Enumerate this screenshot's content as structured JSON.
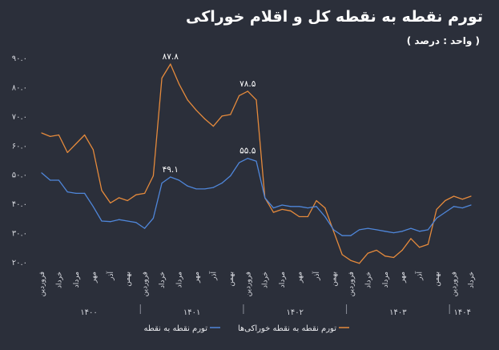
{
  "chart_data": {
    "type": "line",
    "title": "تورم نقطه به نقطه کل و اقلام خوراکی",
    "subtitle": "( واحد : درصد )",
    "ylim": [
      20,
      90
    ],
    "yticks": [
      "۲۰.۰",
      "۳۰.۰",
      "۴۰.۰",
      "۵۰.۰",
      "۶۰.۰",
      "۷۰.۰",
      "۸۰.۰",
      "۹۰.۰"
    ],
    "ytick_values": [
      20,
      30,
      40,
      50,
      60,
      70,
      80,
      90
    ],
    "x": [
      "فروردین",
      "",
      "خرداد",
      "",
      "مرداد",
      "",
      "مهر",
      "",
      "آذر",
      "",
      "بهمن",
      "",
      "فروردین",
      "",
      "خرداد",
      "",
      "مرداد",
      "",
      "مهر",
      "",
      "آذر",
      "",
      "بهمن",
      "",
      "فروردین",
      "",
      "خرداد",
      "",
      "مرداد",
      "",
      "مهر",
      "",
      "آذر",
      "",
      "بهمن",
      "",
      "فروردین",
      "",
      "خرداد",
      "",
      "مرداد",
      "",
      "مهر",
      "",
      "آذر",
      "",
      "بهمن",
      "",
      "فروردین",
      "",
      "خرداد"
    ],
    "years": [
      {
        "label": "۱۴۰۰",
        "center_index": 5.5
      },
      {
        "label": "۱۴۰۱",
        "center_index": 17.5
      },
      {
        "label": "۱۴۰۲",
        "center_index": 29.5
      },
      {
        "label": "۱۴۰۳",
        "center_index": 41.5
      },
      {
        "label": "۱۴۰۴",
        "center_index": 49
      }
    ],
    "grid": false,
    "legend_position": "bottom",
    "series": [
      {
        "name": "تورم نقطه به نقطه خوراکی‌ها",
        "color": "#e58a3c",
        "values": [
          64.2,
          63.0,
          63.5,
          57.5,
          60.5,
          63.5,
          58.5,
          44.5,
          40.2,
          42.0,
          41.0,
          43.0,
          43.5,
          49.5,
          83.0,
          87.8,
          81.0,
          75.5,
          72.0,
          69.0,
          66.5,
          70.0,
          70.5,
          77.0,
          78.5,
          75.5,
          42.0,
          37.0,
          38.0,
          37.5,
          35.5,
          35.5,
          41.0,
          38.5,
          30.5,
          22.5,
          20.5,
          19.5,
          23.0,
          24.0,
          22.0,
          21.5,
          24.0,
          28.0,
          25.0,
          26.0,
          38.0,
          41.0,
          42.5,
          41.5,
          42.5
        ],
        "annotations": [
          {
            "index": 15,
            "label": "۸۷.۸"
          },
          {
            "index": 24,
            "label": "۷۸.۵"
          }
        ]
      },
      {
        "name": "تورم نقطه به نقطه",
        "color": "#4f86d9",
        "values": [
          50.5,
          48.0,
          48.0,
          44.0,
          43.5,
          43.5,
          39.0,
          34.0,
          33.8,
          34.5,
          34.0,
          33.5,
          31.5,
          35.0,
          47.0,
          49.1,
          48.0,
          46.0,
          45.0,
          45.0,
          45.5,
          47.0,
          49.5,
          54.0,
          55.5,
          54.5,
          42.0,
          38.5,
          39.5,
          39.0,
          39.0,
          38.5,
          39.0,
          35.5,
          31.0,
          29.0,
          29.0,
          31.0,
          31.5,
          31.0,
          30.5,
          30.0,
          30.5,
          31.5,
          30.5,
          31.0,
          35.0,
          37.0,
          39.0,
          38.5,
          39.5
        ],
        "annotations": [
          {
            "index": 15,
            "label": "۴۹.۱"
          },
          {
            "index": 24,
            "label": "۵۵.۵"
          }
        ]
      }
    ]
  }
}
